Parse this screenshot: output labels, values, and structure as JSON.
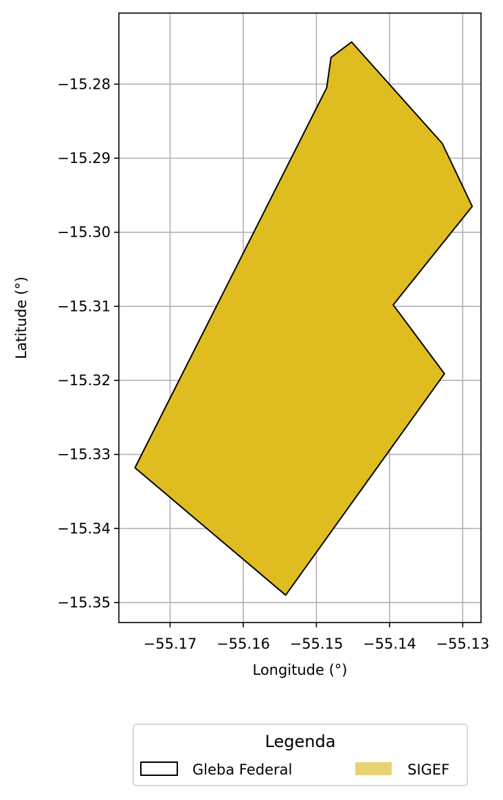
{
  "chart_data": {
    "type": "map",
    "xlabel": "Longitude (°)",
    "ylabel": "Latitude (°)",
    "xlim": [
      -55.177,
      -55.1275
    ],
    "ylim": [
      -15.3527,
      -15.2704
    ],
    "xticks": [
      -55.17,
      -55.16,
      -55.15,
      -55.14,
      -55.13
    ],
    "xtick_labels": [
      "−55.17",
      "−55.16",
      "−55.15",
      "−55.14",
      "−55.13"
    ],
    "yticks": [
      -15.28,
      -15.29,
      -15.3,
      -15.31,
      -15.32,
      -15.33,
      -15.34,
      -15.35
    ],
    "ytick_labels": [
      "−15.28",
      "−15.29",
      "−15.30",
      "−15.31",
      "−15.32",
      "−15.33",
      "−15.34",
      "−15.35"
    ],
    "grid": true,
    "colors": {
      "sigef_fill": "#dfbd21",
      "sigef_legend_fill": "#e8d374",
      "gleba_edge": "#000000",
      "grid": "#b0b0b0",
      "legend_border": "#cccccc"
    },
    "polygon": {
      "lon": [
        -55.1452,
        -55.1328,
        -55.1287,
        -55.1395,
        -55.1325,
        -55.1542,
        -55.1748,
        -55.1486,
        -55.148
      ],
      "lat": [
        -15.2743,
        -15.288,
        -15.2965,
        -15.3098,
        -15.3191,
        -15.349,
        -15.3318,
        -15.2805,
        -15.2764
      ]
    },
    "legend": {
      "title": "Legenda",
      "placement": "bottom-center",
      "entries": [
        {
          "label": "Gleba Federal",
          "style": "outline"
        },
        {
          "label": "SIGEF",
          "style": "fill"
        }
      ]
    }
  }
}
